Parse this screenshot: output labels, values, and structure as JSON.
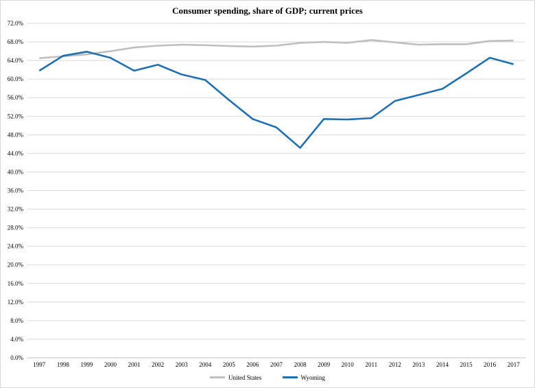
{
  "chart_data": {
    "type": "line",
    "title": "Consumer spending, share of GDP; current prices",
    "xlabel": "",
    "ylabel": "",
    "categories": [
      "1997",
      "1998",
      "1999",
      "2000",
      "2001",
      "2002",
      "2003",
      "2004",
      "2005",
      "2006",
      "2007",
      "2008",
      "2009",
      "2010",
      "2011",
      "2012",
      "2013",
      "2014",
      "2015",
      "2016",
      "2017"
    ],
    "y_ticks": [
      "0.0%",
      "4.0%",
      "8.0%",
      "12.0%",
      "16.0%",
      "20.0%",
      "24.0%",
      "28.0%",
      "32.0%",
      "36.0%",
      "40.0%",
      "44.0%",
      "48.0%",
      "52.0%",
      "56.0%",
      "60.0%",
      "64.0%",
      "68.0%",
      "72.0%"
    ],
    "ylim": [
      0,
      72
    ],
    "grid": true,
    "legend_position": "bottom",
    "series": [
      {
        "name": "United States",
        "color": "#bfbfbf",
        "values": [
          64.5,
          64.9,
          65.3,
          66.0,
          66.8,
          67.2,
          67.4,
          67.3,
          67.1,
          67.0,
          67.2,
          67.8,
          68.0,
          67.8,
          68.4,
          67.9,
          67.4,
          67.5,
          67.5,
          68.2,
          68.3
        ]
      },
      {
        "name": "Wyoming",
        "color": "#1f6fb0",
        "values": [
          61.8,
          65.0,
          65.9,
          64.6,
          61.8,
          63.1,
          61.0,
          59.8,
          55.5,
          51.4,
          49.6,
          45.2,
          51.4,
          51.3,
          51.6,
          55.3,
          56.6,
          57.9,
          61.2,
          64.6,
          63.2
        ]
      }
    ]
  }
}
